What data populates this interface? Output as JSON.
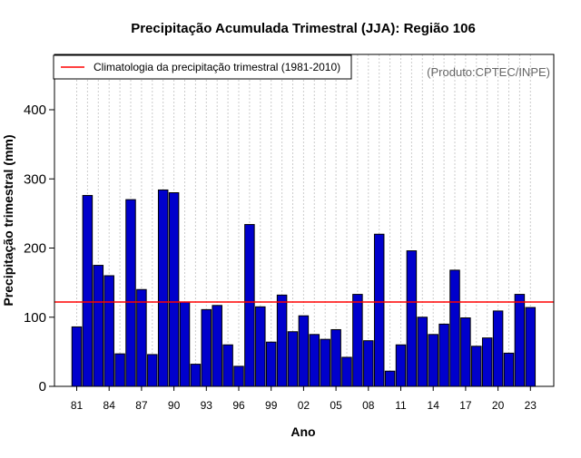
{
  "chart_data": {
    "type": "bar",
    "title": "Precipitação Acumulada Trimestral (JJA): Região 106",
    "xlabel": "Ano",
    "ylabel": "Precipitação trimestral (mm)",
    "ylim": [
      0,
      480
    ],
    "yticks": [
      0,
      100,
      200,
      300,
      400
    ],
    "xtick_labels": [
      "81",
      "84",
      "87",
      "90",
      "93",
      "96",
      "99",
      "02",
      "05",
      "08",
      "11",
      "14",
      "17",
      "20",
      "23"
    ],
    "xtick_years": [
      1981,
      1984,
      1987,
      1990,
      1993,
      1996,
      1999,
      2002,
      2005,
      2008,
      2011,
      2014,
      2017,
      2020,
      2023
    ],
    "years": [
      1981,
      1982,
      1983,
      1984,
      1985,
      1986,
      1987,
      1988,
      1989,
      1990,
      1991,
      1992,
      1993,
      1994,
      1995,
      1996,
      1997,
      1998,
      1999,
      2000,
      2001,
      2002,
      2003,
      2004,
      2005,
      2006,
      2007,
      2008,
      2009,
      2010,
      2011,
      2012,
      2013,
      2014,
      2015,
      2016,
      2017,
      2018,
      2019,
      2020,
      2021,
      2022,
      2023
    ],
    "values": [
      86,
      276,
      175,
      160,
      47,
      270,
      140,
      46,
      284,
      280,
      122,
      32,
      111,
      117,
      60,
      29,
      234,
      115,
      64,
      132,
      79,
      102,
      75,
      68,
      82,
      42,
      133,
      66,
      220,
      22,
      60,
      196,
      100,
      75,
      90,
      168,
      99,
      58,
      70,
      109,
      48,
      133,
      114
    ],
    "series": [
      {
        "name": "Precipitação trimestral",
        "color": "#0000cc"
      }
    ],
    "reference_line": {
      "label": "Climatologia da precipitação trimestral (1981-2010)",
      "value": 122,
      "color": "#ff0000"
    },
    "legend_position": "top-left",
    "grid": "vertical-dotted",
    "annotation": "(Produto:CPTEC/INPE)"
  }
}
